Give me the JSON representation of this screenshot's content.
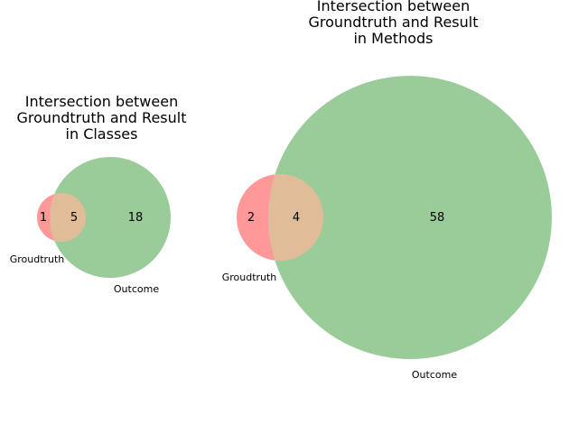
{
  "venns": [
    {
      "title": [
        "Intersection between",
        "Groundtruth and Result",
        "in Classes"
      ],
      "set_labels": [
        "Groudtruth",
        "Outcome"
      ],
      "only_left": "1",
      "intersection": "5",
      "only_right": "18"
    },
    {
      "title": [
        "Intersection between",
        "Groundtruth and Result",
        "in Methods"
      ],
      "set_labels": [
        "Groudtruth",
        "Outcome"
      ],
      "only_left": "2",
      "intersection": "4",
      "only_right": "58"
    }
  ],
  "colors": {
    "set_a": "#ff9999",
    "set_b": "#99cc99",
    "overlap": "#e0bc99"
  }
}
